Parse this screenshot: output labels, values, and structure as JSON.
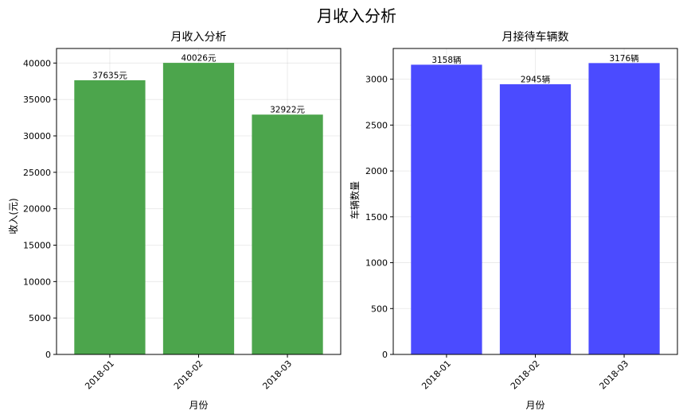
{
  "figure": {
    "suptitle": "月收入分析"
  },
  "chart_data": [
    {
      "type": "bar",
      "title": "月收入分析",
      "xlabel": "月份",
      "ylabel": "收入(元)",
      "categories": [
        "2018-01",
        "2018-02",
        "2018-03"
      ],
      "values": [
        37635,
        40026,
        32922
      ],
      "data_labels": [
        "37635元",
        "40026元",
        "32922元"
      ],
      "ylim": [
        0,
        42000
      ],
      "yticks": [
        0,
        5000,
        10000,
        15000,
        20000,
        25000,
        30000,
        35000,
        40000
      ],
      "ytick_labels": [
        "0",
        "5000",
        "10000",
        "15000",
        "20000",
        "25000",
        "30000",
        "35000",
        "40000"
      ],
      "color": "#4ca54c",
      "grid": true,
      "x_tick_rotation": 45
    },
    {
      "type": "bar",
      "title": "月接待车辆数",
      "xlabel": "月份",
      "ylabel": "车辆数量",
      "categories": [
        "2018-01",
        "2018-02",
        "2018-03"
      ],
      "values": [
        3158,
        2945,
        3176
      ],
      "data_labels": [
        "3158辆",
        "2945辆",
        "3176辆"
      ],
      "ylim": [
        0,
        3335
      ],
      "yticks": [
        0,
        500,
        1000,
        1500,
        2000,
        2500,
        3000
      ],
      "ytick_labels": [
        "0",
        "500",
        "1000",
        "1500",
        "2000",
        "2500",
        "3000"
      ],
      "color": "#4b4bff",
      "grid": true,
      "x_tick_rotation": 45
    }
  ]
}
